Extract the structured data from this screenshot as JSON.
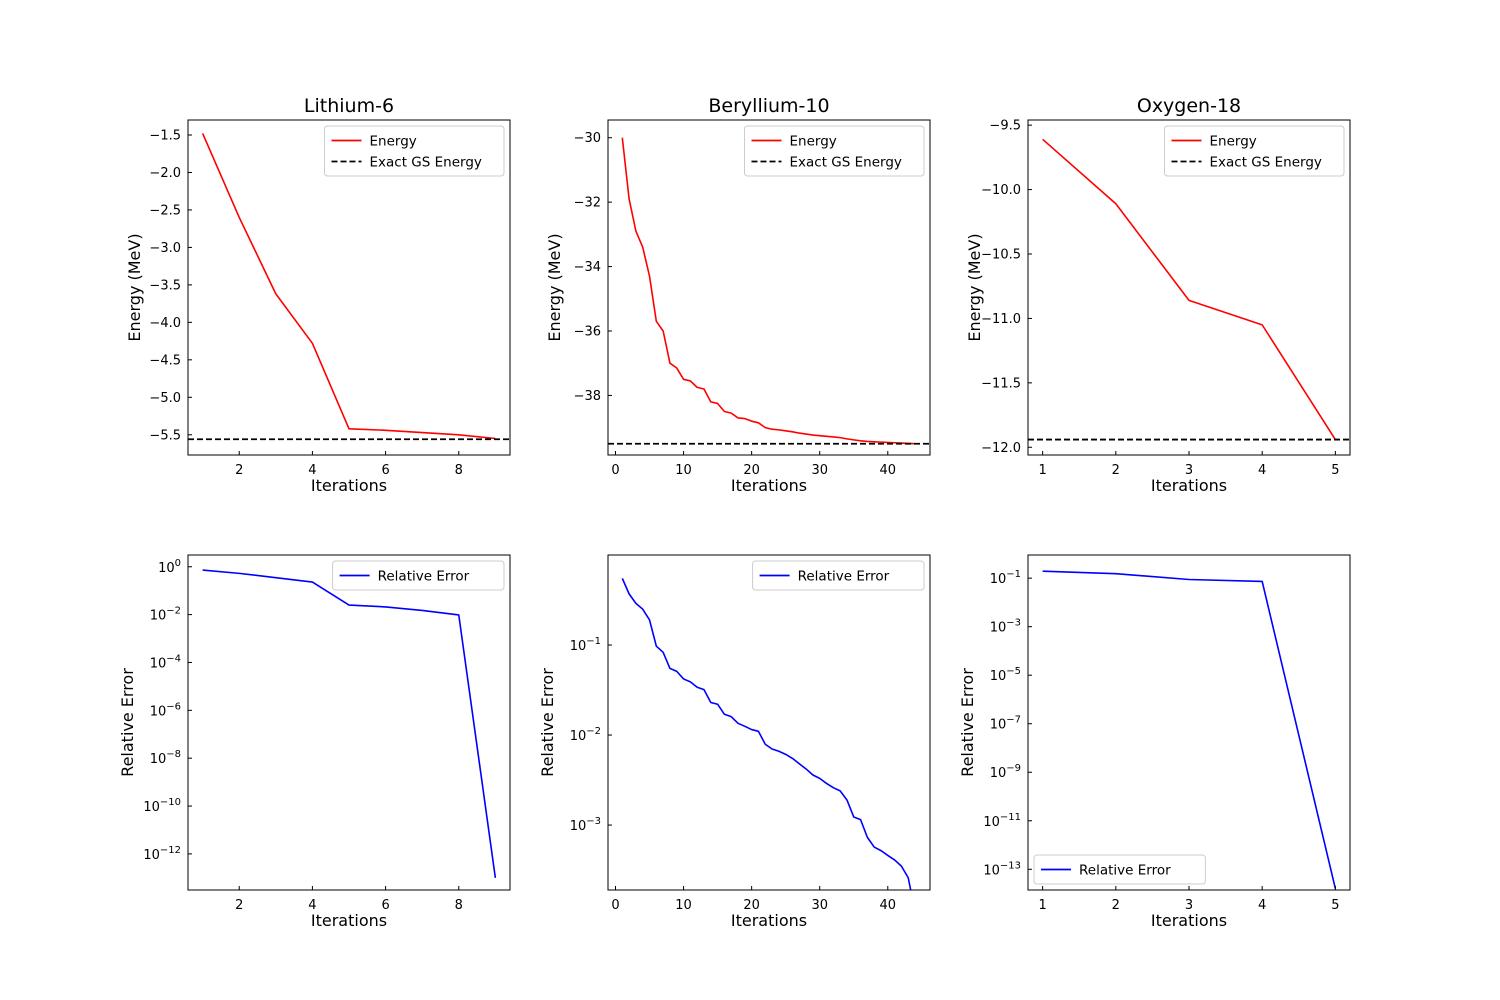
{
  "colors": {
    "energy": "#ff0000",
    "exact": "#000000",
    "relerr": "#0000ff"
  },
  "chart_data": [
    {
      "type": "line",
      "title": "Lithium-6",
      "xlabel": "Iterations",
      "ylabel": "Energy (MeV)",
      "xlim": [
        0.6,
        9.4
      ],
      "ylim": [
        -5.77,
        -1.3
      ],
      "yscale": "linear",
      "xticks": [
        2,
        4,
        6,
        8
      ],
      "xticklabels": [
        "2",
        "4",
        "6",
        "8"
      ],
      "yticks": [
        -1.5,
        -2.0,
        -2.5,
        -3.0,
        -3.5,
        -4.0,
        -4.5,
        -5.0,
        -5.5
      ],
      "yticklabels": [
        "−1.5",
        "−2.0",
        "−2.5",
        "−3.0",
        "−3.5",
        "−4.0",
        "−4.5",
        "−5.0",
        "−5.5"
      ],
      "legend_position": "upper-right",
      "series": [
        {
          "name": "Energy",
          "kind": "line",
          "x": [
            1,
            2,
            3,
            4,
            5,
            6,
            7,
            8,
            9
          ],
          "values": [
            -1.48,
            -2.6,
            -3.62,
            -4.28,
            -5.42,
            -5.44,
            -5.47,
            -5.5,
            -5.55
          ]
        },
        {
          "name": "Exact GS Energy",
          "kind": "hline",
          "value": -5.56
        }
      ]
    },
    {
      "type": "line",
      "title": "Beryllium-10",
      "xlabel": "Iterations",
      "ylabel": "Energy (MeV)",
      "xlim": [
        -1.1,
        46.2
      ],
      "ylim": [
        -39.85,
        -29.45
      ],
      "yscale": "linear",
      "xticks": [
        0,
        10,
        20,
        30,
        40
      ],
      "xticklabels": [
        "0",
        "10",
        "20",
        "30",
        "40"
      ],
      "yticks": [
        -30,
        -32,
        -34,
        -36,
        -38
      ],
      "yticklabels": [
        "−30",
        "−32",
        "−34",
        "−36",
        "−38"
      ],
      "legend_position": "upper-right",
      "series": [
        {
          "name": "Energy",
          "kind": "line",
          "x": [
            1,
            2,
            3,
            4,
            5,
            6,
            7,
            8,
            9,
            10,
            11,
            12,
            13,
            14,
            15,
            16,
            17,
            18,
            19,
            20,
            21,
            22,
            23,
            24,
            25,
            26,
            27,
            28,
            29,
            30,
            31,
            32,
            33,
            34,
            35,
            36,
            37,
            38,
            39,
            40,
            41,
            42,
            43,
            44
          ],
          "values": [
            -30.0,
            -31.9,
            -32.9,
            -33.4,
            -34.3,
            -35.7,
            -36.0,
            -37.0,
            -37.15,
            -37.5,
            -37.55,
            -37.75,
            -37.8,
            -38.2,
            -38.25,
            -38.5,
            -38.55,
            -38.7,
            -38.72,
            -38.8,
            -38.85,
            -39.0,
            -39.05,
            -39.07,
            -39.1,
            -39.13,
            -39.17,
            -39.2,
            -39.23,
            -39.25,
            -39.27,
            -39.29,
            -39.31,
            -39.35,
            -39.38,
            -39.41,
            -39.43,
            -39.44,
            -39.45,
            -39.46,
            -39.47,
            -39.48,
            -39.49,
            -39.5
          ]
        },
        {
          "name": "Exact GS Energy",
          "kind": "hline",
          "value": -39.5
        }
      ]
    },
    {
      "type": "line",
      "title": "Oxygen-18",
      "xlabel": "Iterations",
      "ylabel": "Energy (MeV)",
      "xlim": [
        0.8,
        5.2
      ],
      "ylim": [
        -12.06,
        -9.46
      ],
      "yscale": "linear",
      "xticks": [
        1,
        2,
        3,
        4,
        5
      ],
      "xticklabels": [
        "1",
        "2",
        "3",
        "4",
        "5"
      ],
      "yticks": [
        -9.5,
        -10.0,
        -10.5,
        -11.0,
        -11.5,
        -12.0
      ],
      "yticklabels": [
        "−9.5",
        "−10.0",
        "−10.5",
        "−11.0",
        "−11.5",
        "−12.0"
      ],
      "legend_position": "upper-right",
      "series": [
        {
          "name": "Energy",
          "kind": "line",
          "x": [
            1,
            2,
            3,
            4,
            5
          ],
          "values": [
            -9.61,
            -10.11,
            -10.86,
            -11.05,
            -11.94
          ]
        },
        {
          "name": "Exact GS Energy",
          "kind": "hline",
          "value": -11.94
        }
      ]
    },
    {
      "type": "line",
      "title": "",
      "xlabel": "Iterations",
      "ylabel": "Relative Error",
      "xlim": [
        0.6,
        9.4
      ],
      "ylim": [
        3.1e-14,
        3.1
      ],
      "yscale": "log",
      "xticks": [
        2,
        4,
        6,
        8
      ],
      "xticklabels": [
        "2",
        "4",
        "6",
        "8"
      ],
      "yticks": [
        1,
        0.01,
        0.0001,
        1e-06,
        1e-08,
        1e-10,
        1e-12
      ],
      "yticklabels": [
        {
          "base": "10",
          "exp": "0"
        },
        {
          "base": "10",
          "exp": "−2"
        },
        {
          "base": "10",
          "exp": "−4"
        },
        {
          "base": "10",
          "exp": "−6"
        },
        {
          "base": "10",
          "exp": "−8"
        },
        {
          "base": "10",
          "exp": "−10"
        },
        {
          "base": "10",
          "exp": "−12"
        }
      ],
      "legend_position": "upper-right",
      "series": [
        {
          "name": "Relative Error",
          "kind": "line",
          "x": [
            1,
            2,
            3,
            4,
            5,
            6,
            7,
            8,
            9
          ],
          "values": [
            0.73,
            0.53,
            0.35,
            0.23,
            0.025,
            0.021,
            0.015,
            0.0097,
            1e-13
          ]
        }
      ]
    },
    {
      "type": "line",
      "title": "",
      "xlabel": "Iterations",
      "ylabel": "Relative Error",
      "xlim": [
        -1.1,
        46.2
      ],
      "ylim": [
        0.00019,
        1.0
      ],
      "yscale": "log",
      "xticks": [
        0,
        10,
        20,
        30,
        40
      ],
      "xticklabels": [
        "0",
        "10",
        "20",
        "30",
        "40"
      ],
      "yticks": [
        0.1,
        0.01,
        0.001
      ],
      "yticklabels": [
        {
          "base": "10",
          "exp": "−1"
        },
        {
          "base": "10",
          "exp": "−2"
        },
        {
          "base": "10",
          "exp": "−3"
        }
      ],
      "legend_position": "upper-right",
      "series": [
        {
          "name": "Relative Error",
          "kind": "line",
          "x": [
            1,
            2,
            3,
            4,
            5,
            6,
            7,
            8,
            9,
            10,
            11,
            12,
            13,
            14,
            15,
            16,
            17,
            18,
            19,
            20,
            21,
            22,
            23,
            24,
            25,
            26,
            27,
            28,
            29,
            30,
            31,
            32,
            33,
            34,
            35,
            36,
            37,
            38,
            39,
            40,
            41,
            42,
            43,
            44
          ],
          "values": [
            0.55,
            0.37,
            0.29,
            0.25,
            0.19,
            0.097,
            0.083,
            0.055,
            0.051,
            0.042,
            0.039,
            0.034,
            0.032,
            0.023,
            0.022,
            0.017,
            0.016,
            0.0135,
            0.0125,
            0.0115,
            0.011,
            0.0079,
            0.007,
            0.0066,
            0.0061,
            0.0055,
            0.0048,
            0.0042,
            0.0036,
            0.0033,
            0.0029,
            0.0026,
            0.0024,
            0.0019,
            0.00123,
            0.00115,
            0.00073,
            0.00057,
            0.00052,
            0.00046,
            0.00041,
            0.00035,
            0.00026,
            0.00011
          ]
        }
      ]
    },
    {
      "type": "line",
      "title": "",
      "xlabel": "Iterations",
      "ylabel": "Relative Error",
      "xlim": [
        0.8,
        5.2
      ],
      "ylim": [
        1.4e-14,
        0.9
      ],
      "yscale": "log",
      "xticks": [
        1,
        2,
        3,
        4,
        5
      ],
      "xticklabels": [
        "1",
        "2",
        "3",
        "4",
        "5"
      ],
      "yticks": [
        0.1,
        0.001,
        1e-05,
        1e-07,
        1e-09,
        1e-11,
        1e-13
      ],
      "yticklabels": [
        {
          "base": "10",
          "exp": "−1"
        },
        {
          "base": "10",
          "exp": "−3"
        },
        {
          "base": "10",
          "exp": "−5"
        },
        {
          "base": "10",
          "exp": "−7"
        },
        {
          "base": "10",
          "exp": "−9"
        },
        {
          "base": "10",
          "exp": "−11"
        },
        {
          "base": "10",
          "exp": "−13"
        }
      ],
      "legend_position": "lower-left",
      "series": [
        {
          "name": "Relative Error",
          "kind": "line",
          "x": [
            1,
            2,
            3,
            4,
            5
          ],
          "values": [
            0.193,
            0.153,
            0.088,
            0.073,
            1.6e-14
          ]
        }
      ]
    }
  ]
}
